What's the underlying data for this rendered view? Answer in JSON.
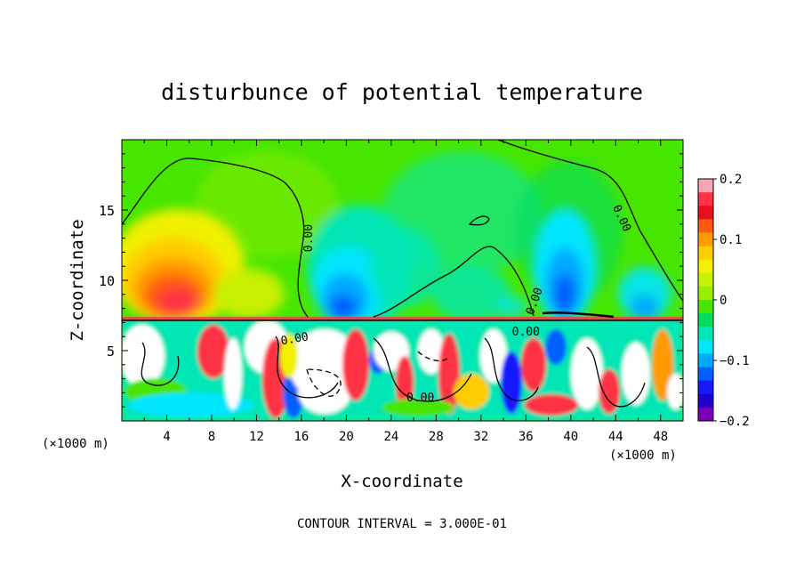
{
  "chart_data": {
    "type": "heatmap",
    "title": "disturbunce of potential temperature",
    "xlabel": "X-coordinate",
    "ylabel": "Z-coordinate",
    "x_unit": "(×1000 m)",
    "y_unit": "(×1000 m)",
    "xlim": [
      0,
      50
    ],
    "ylim": [
      0,
      20
    ],
    "x_ticks": [
      4,
      8,
      12,
      16,
      20,
      24,
      28,
      32,
      36,
      40,
      44,
      48
    ],
    "x_tick_labels": [
      "4",
      "8",
      "12",
      "16",
      "20",
      "24",
      "28",
      "32",
      "36",
      "40",
      "44",
      "48"
    ],
    "y_ticks": [
      5,
      10,
      15
    ],
    "y_tick_labels": [
      "5",
      "10",
      "15"
    ],
    "colorbar": {
      "min": -0.2,
      "max": 0.2,
      "ticks": [
        0.2,
        0.1,
        0,
        -0.1,
        -0.2
      ],
      "tick_labels": [
        "0.2",
        "0.1",
        "0",
        "−0.1",
        "−0.2"
      ],
      "colors": [
        "#f4a6b6",
        "#ff3344",
        "#e8101c",
        "#ff5a10",
        "#ff9a00",
        "#ffcc00",
        "#f0f000",
        "#c8f000",
        "#96ee00",
        "#46e600",
        "#00dc60",
        "#00e6b4",
        "#00e6ff",
        "#00aaff",
        "#0060ff",
        "#1818ff",
        "#2000c8",
        "#7a00b8"
      ]
    },
    "contour_labels": [
      {
        "text": "0.00",
        "x": 16.7,
        "y": 13.0,
        "angle": -90
      },
      {
        "text": "0.00",
        "x": 44.5,
        "y": 14.4,
        "angle": 65
      },
      {
        "text": "0.00",
        "x": 36.8,
        "y": 8.5,
        "angle": -70
      },
      {
        "text": "0.00",
        "x": 36.0,
        "y": 6.3,
        "angle": 0
      },
      {
        "text": "0.00",
        "x": 15.4,
        "y": 5.8,
        "angle": -10
      },
      {
        "text": "0.00",
        "x": 26.6,
        "y": 1.6,
        "angle": 0
      }
    ],
    "contour_interval_label": "CONTOUR INTERVAL = 3.000E-01"
  }
}
